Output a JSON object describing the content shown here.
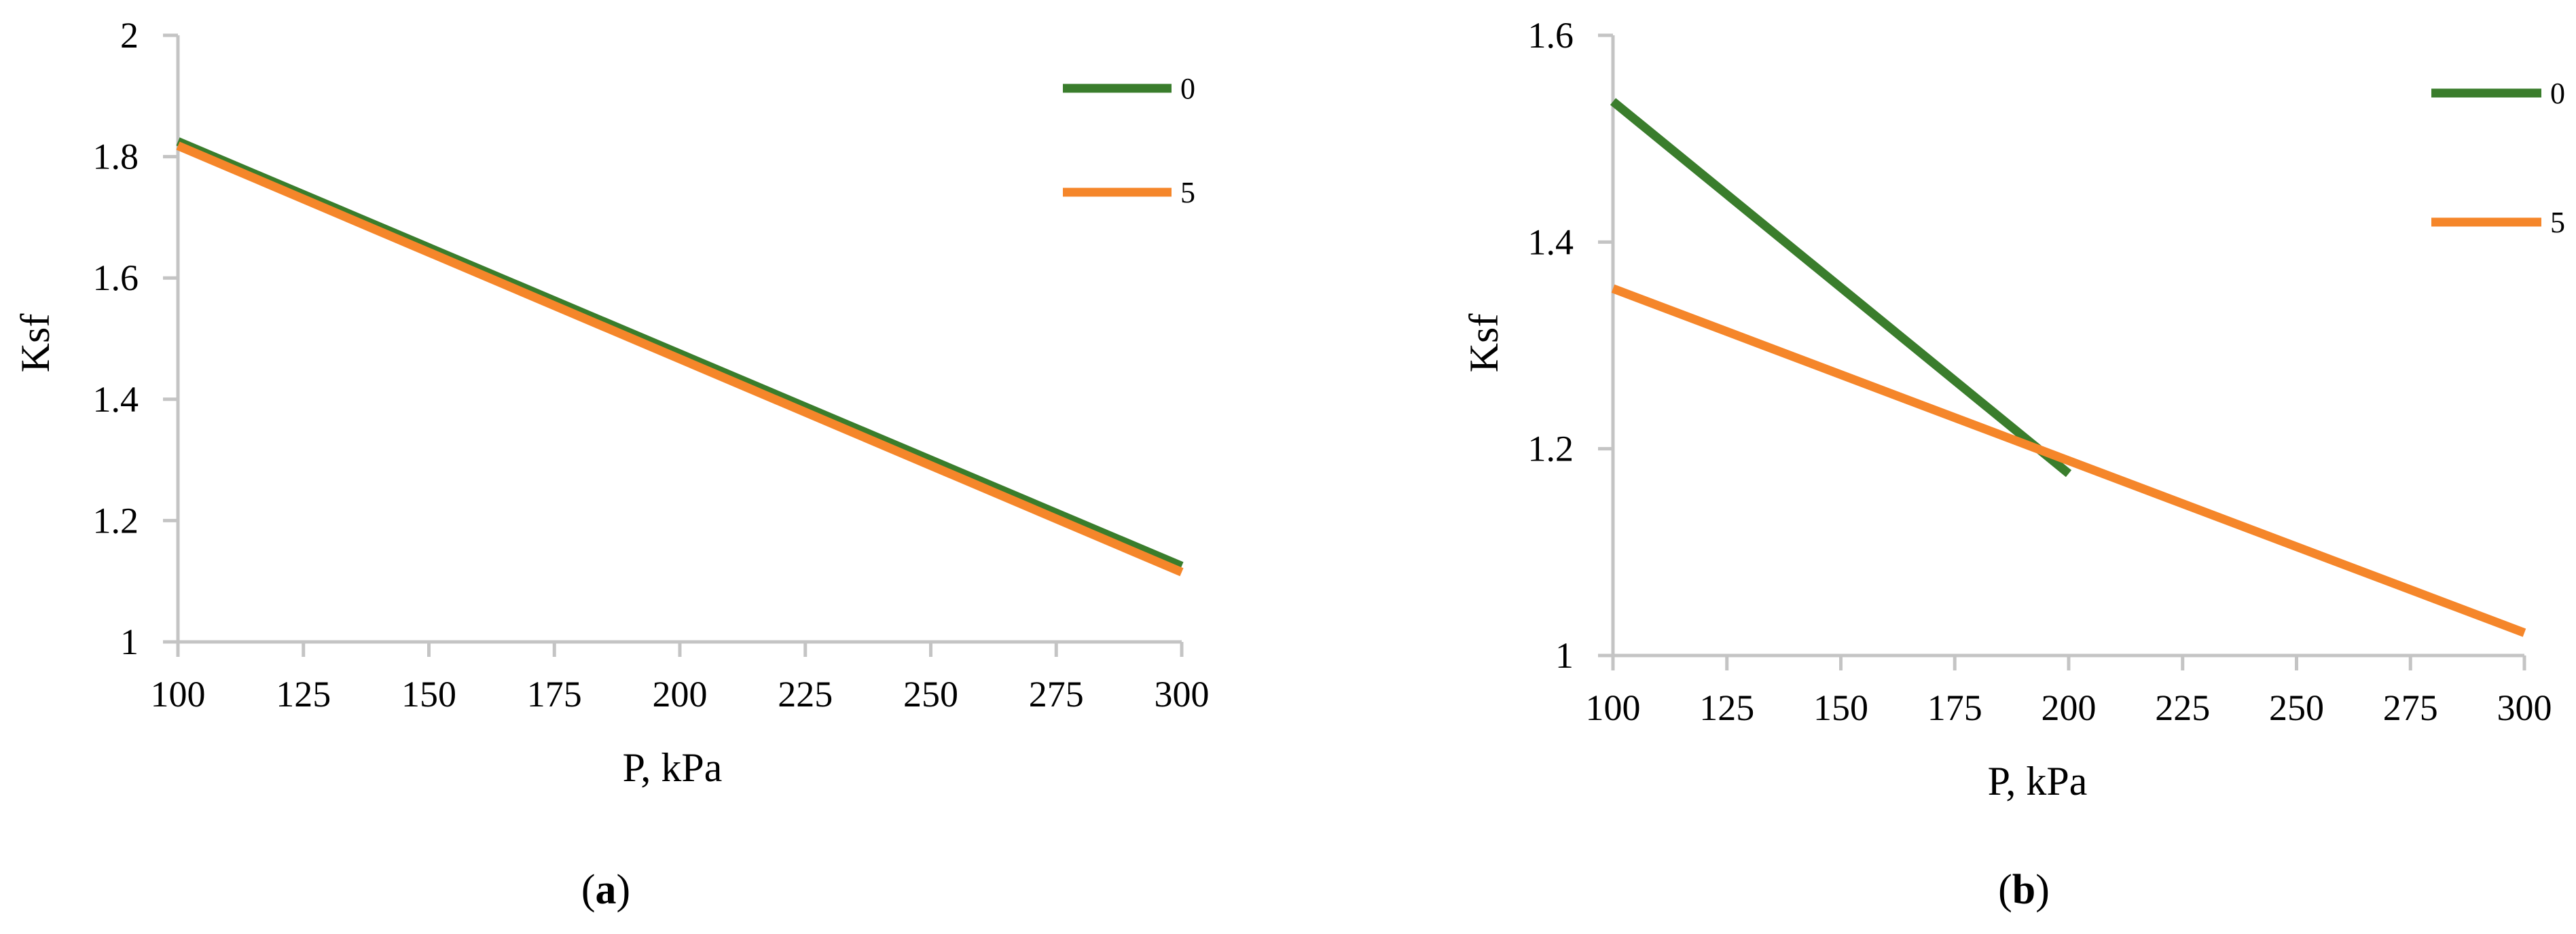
{
  "chart_data": [
    {
      "type": "line",
      "panel": "a",
      "xlabel": "P, kPa",
      "ylabel": "Ksf",
      "xlim": [
        100,
        300
      ],
      "ylim": [
        1,
        2
      ],
      "xticks": [
        "100",
        "125",
        "150",
        "175",
        "200",
        "225",
        "250",
        "275",
        "300"
      ],
      "yticks": [
        "1",
        "1.2",
        "1.4",
        "1.6",
        "1.8",
        "2"
      ],
      "legend_position": "top-right",
      "grid": false,
      "series": [
        {
          "name": "0",
          "color": "#3a7d2c",
          "x": [
            100,
            300
          ],
          "y": [
            1.825,
            1.125
          ]
        },
        {
          "name": "5",
          "color": "#f5862a",
          "x": [
            100,
            300
          ],
          "y": [
            1.818,
            1.115
          ]
        }
      ]
    },
    {
      "type": "line",
      "panel": "b",
      "xlabel": "P, kPa",
      "ylabel": "Ksf",
      "xlim": [
        100,
        300
      ],
      "ylim": [
        1,
        1.6
      ],
      "xticks": [
        "100",
        "125",
        "150",
        "175",
        "200",
        "225",
        "250",
        "275",
        "300"
      ],
      "yticks": [
        "1",
        "1.2",
        "1.4",
        "1.6"
      ],
      "legend_position": "top-right",
      "grid": false,
      "series": [
        {
          "name": "0",
          "color": "#3a7d2c",
          "x": [
            100,
            200
          ],
          "y": [
            1.536,
            1.176
          ]
        },
        {
          "name": "5",
          "color": "#f5862a",
          "x": [
            100,
            300
          ],
          "y": [
            1.355,
            1.022
          ]
        }
      ]
    }
  ],
  "captions": [
    {
      "open": "(",
      "letter": "a",
      "close": ")"
    },
    {
      "open": "(",
      "letter": "b",
      "close": ")"
    }
  ]
}
